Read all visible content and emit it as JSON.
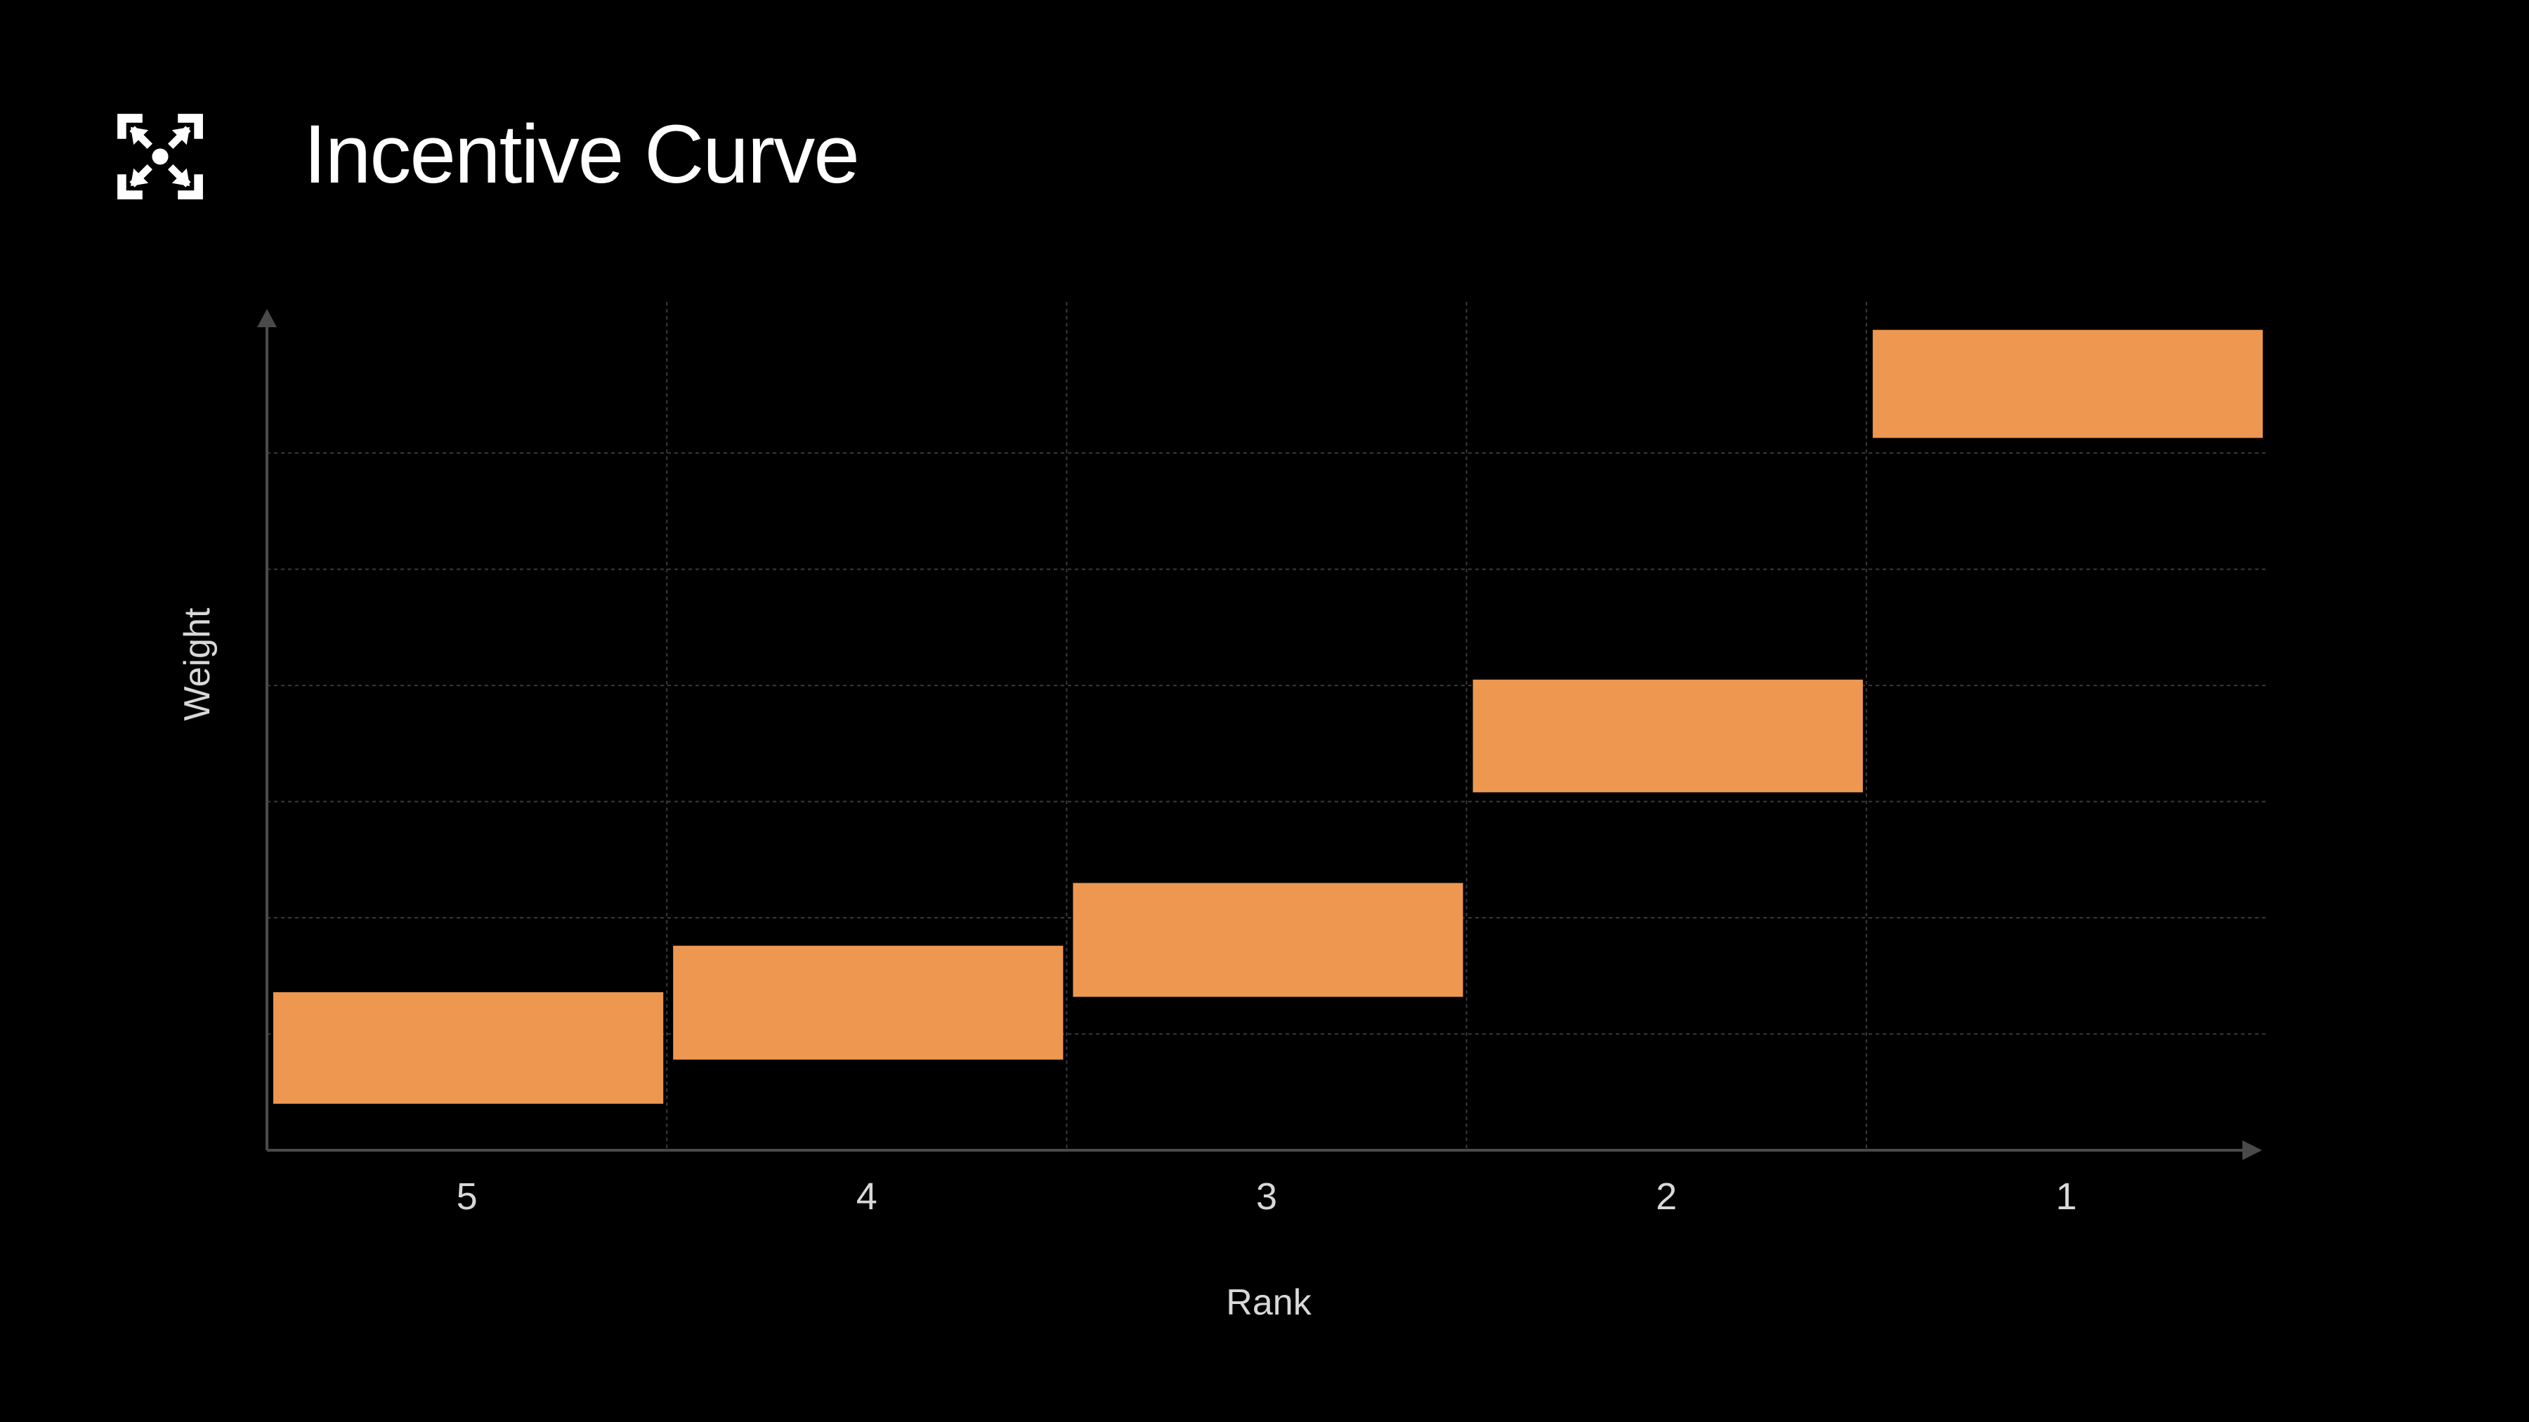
{
  "title": "Incentive Curve",
  "logo_icon": "expand-arrows-icon",
  "colors": {
    "background": "#000000",
    "bar": "#ED9750",
    "axis": "#4a4a4a",
    "grid": "#3a3a3a",
    "text": "#d8d8d8",
    "title": "#ffffff"
  },
  "chart_data": {
    "type": "bar",
    "subtype": "floating",
    "categories": [
      "5",
      "4",
      "3",
      "2",
      "1"
    ],
    "ranges": [
      [
        0.4,
        1.36
      ],
      [
        0.78,
        1.76
      ],
      [
        1.32,
        2.3
      ],
      [
        3.08,
        4.05
      ],
      [
        6.13,
        7.06
      ]
    ],
    "xlabel": "Rank",
    "ylabel": "Weight",
    "ylim": [
      0,
      7.3
    ],
    "y_gridlines": [
      1,
      2,
      3,
      4,
      5,
      6
    ],
    "grid": true,
    "y_tick_labels_shown": false
  }
}
